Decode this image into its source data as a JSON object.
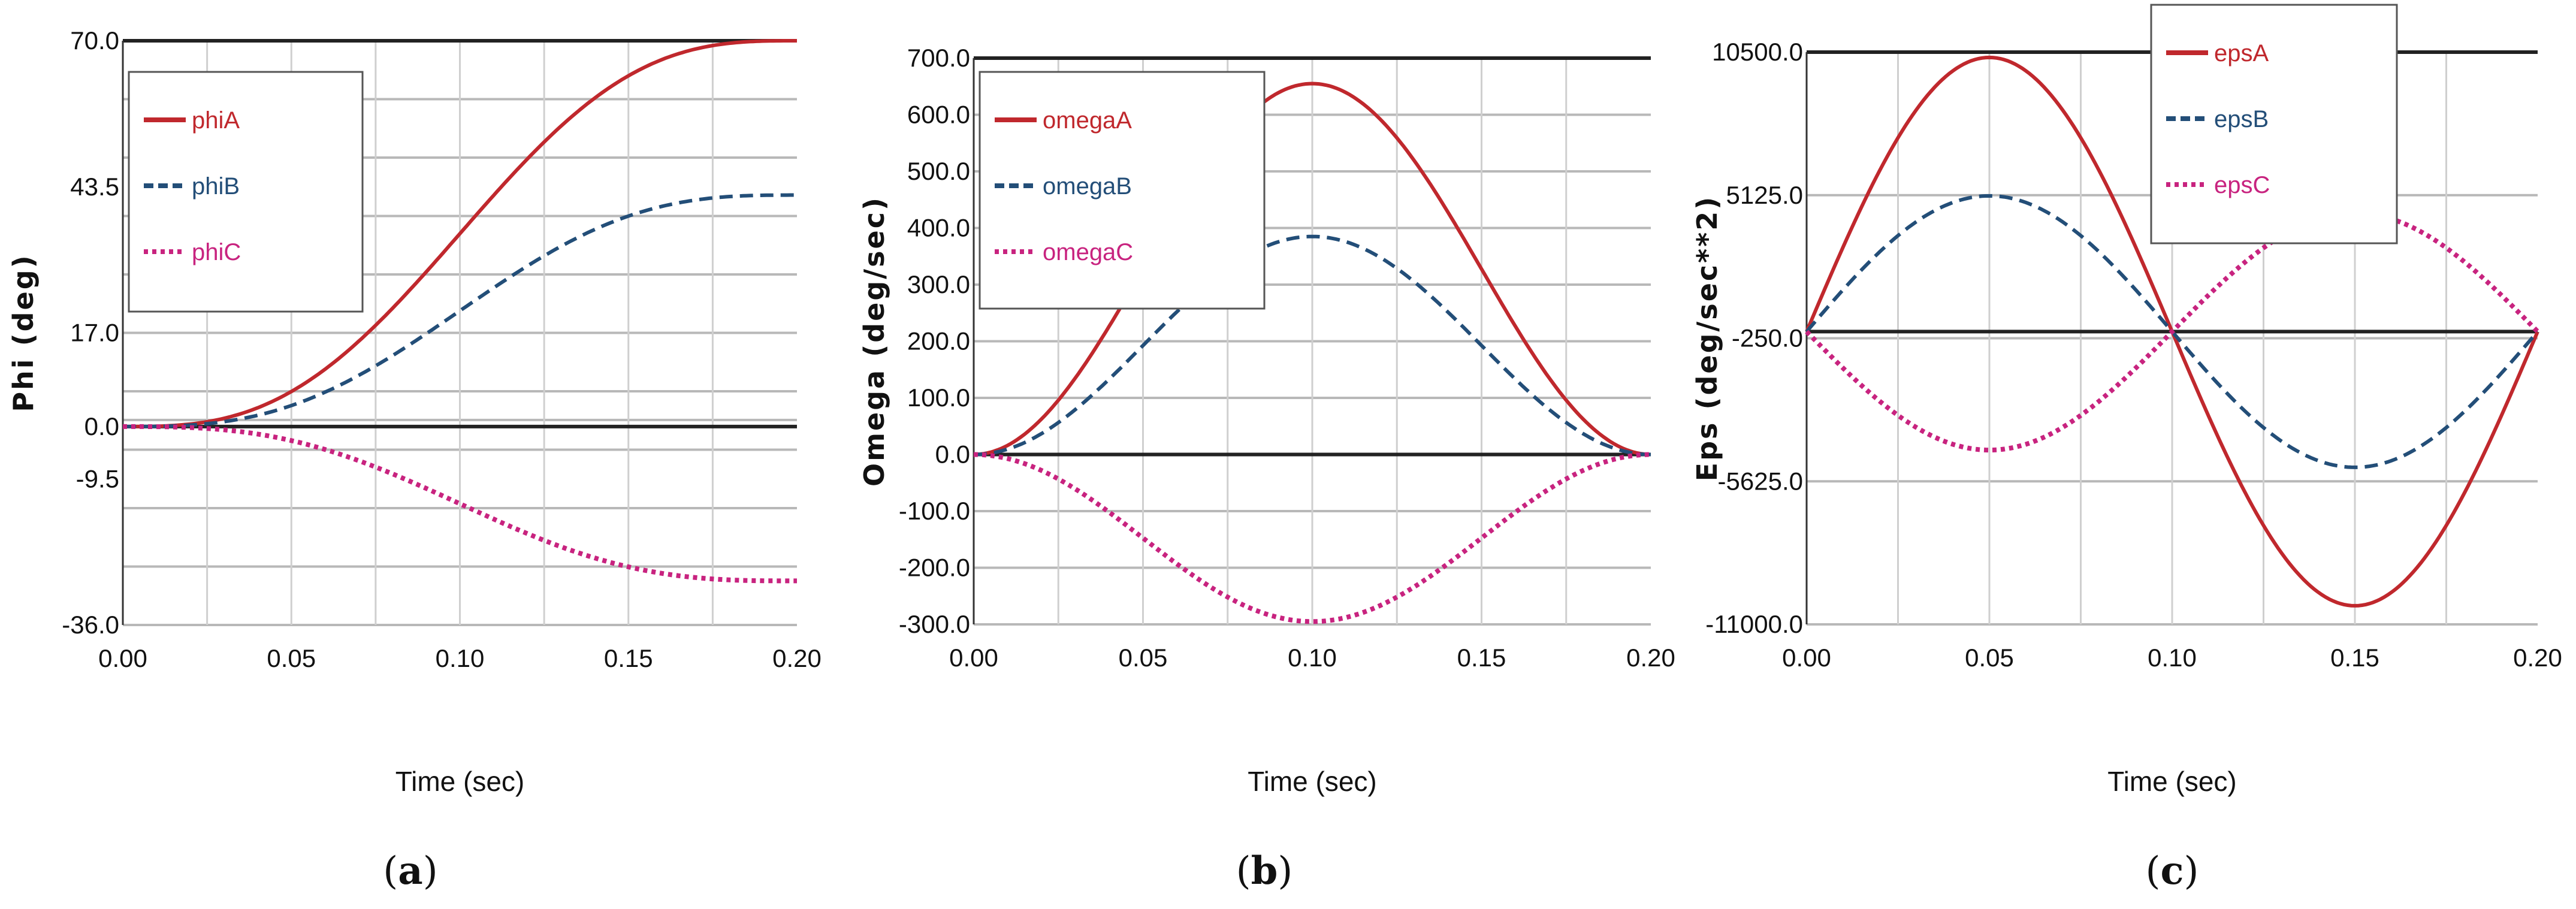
{
  "colors": {
    "seriesA": "#c0282d",
    "seriesB": "#234e78",
    "seriesC": "#c8237f",
    "grid": "#b8b8b8",
    "zero": "#222222"
  },
  "chart_data": [
    {
      "type": "line",
      "caption": {
        "open": "(",
        "letter": "a",
        "close": ")"
      },
      "xlabel": "Time (sec)",
      "ylabel": "Phi (deg)",
      "xlim": [
        0,
        0.2
      ],
      "ylim": [
        -36,
        70
      ],
      "xticks": [
        0,
        0.05,
        0.1,
        0.15,
        0.2
      ],
      "xtick_labels": [
        "0.00",
        "0.05",
        "0.10",
        "0.15",
        "0.20"
      ],
      "yticks": [
        70,
        43.5,
        17,
        0,
        -9.5,
        -36
      ],
      "ytick_labels": [
        "70.0",
        "43.5",
        "17.0",
        "0.0",
        "-9.5",
        "-36.0"
      ],
      "hgrid": [
        70,
        59.4,
        48.8,
        38.2,
        27.6,
        17,
        6.4,
        1.2,
        -4.2,
        -14.8,
        -25.4,
        -36
      ],
      "legend_position": "top-left",
      "series": [
        {
          "name": "phiA",
          "peak": 70,
          "curve": "displacement",
          "style": "solid",
          "color_key": "seriesA"
        },
        {
          "name": "phiB",
          "peak": 42,
          "curve": "displacement",
          "style": "dash",
          "color_key": "seriesB"
        },
        {
          "name": "phiC",
          "peak": -28,
          "curve": "displacement",
          "style": "dot",
          "color_key": "seriesC"
        }
      ]
    },
    {
      "type": "line",
      "caption": {
        "open": "(",
        "letter": "b",
        "close": ")"
      },
      "xlabel": "Time (sec)",
      "ylabel": "Omega (deg/sec)",
      "xlim": [
        0,
        0.2
      ],
      "ylim": [
        -300,
        700
      ],
      "xticks": [
        0,
        0.05,
        0.1,
        0.15,
        0.2
      ],
      "xtick_labels": [
        "0.00",
        "0.05",
        "0.10",
        "0.15",
        "0.20"
      ],
      "yticks": [
        700,
        600,
        500,
        400,
        300,
        200,
        100,
        0,
        -100,
        -200,
        -300
      ],
      "ytick_labels": [
        "700.0",
        "600.0",
        "500.0",
        "400.0",
        "300.0",
        "200.0",
        "100.0",
        "0.0",
        "-100.0",
        "-200.0",
        "-300.0"
      ],
      "hgrid": [
        700,
        600,
        500,
        400,
        300,
        200,
        100,
        0,
        -100,
        -200,
        -300
      ],
      "legend_position": "top-left",
      "series": [
        {
          "name": "omegaA",
          "peak": 655,
          "curve": "velocity",
          "style": "solid",
          "color_key": "seriesA"
        },
        {
          "name": "omegaB",
          "peak": 385,
          "curve": "velocity",
          "style": "dash",
          "color_key": "seriesB"
        },
        {
          "name": "omegaC",
          "peak": -295,
          "curve": "velocity",
          "style": "dot",
          "color_key": "seriesC"
        }
      ]
    },
    {
      "type": "line",
      "caption": {
        "open": "(",
        "letter": "c",
        "close": ")"
      },
      "xlabel": "Time (sec)",
      "ylabel": "Eps (deg/sec**2)",
      "xlim": [
        0,
        0.2
      ],
      "ylim": [
        -11000,
        10500
      ],
      "xticks": [
        0,
        0.05,
        0.1,
        0.15,
        0.2
      ],
      "xtick_labels": [
        "0.00",
        "0.05",
        "0.10",
        "0.15",
        "0.20"
      ],
      "yticks": [
        10500,
        5125,
        -250,
        -5625,
        -11000
      ],
      "ytick_labels": [
        "10500.0",
        "5125.0",
        "-250.0",
        "-5625.0",
        "-11000.0"
      ],
      "hgrid": [
        10500,
        5125,
        -250,
        -5625,
        -11000
      ],
      "legend_position": "top-center",
      "series": [
        {
          "name": "epsA",
          "peak": 10300,
          "curve": "acceleration",
          "style": "solid",
          "color_key": "seriesA"
        },
        {
          "name": "epsB",
          "peak": 5100,
          "curve": "acceleration",
          "style": "dash",
          "color_key": "seriesB"
        },
        {
          "name": "epsC",
          "peak": -4450,
          "curve": "acceleration",
          "style": "dot",
          "color_key": "seriesC"
        }
      ]
    }
  ]
}
